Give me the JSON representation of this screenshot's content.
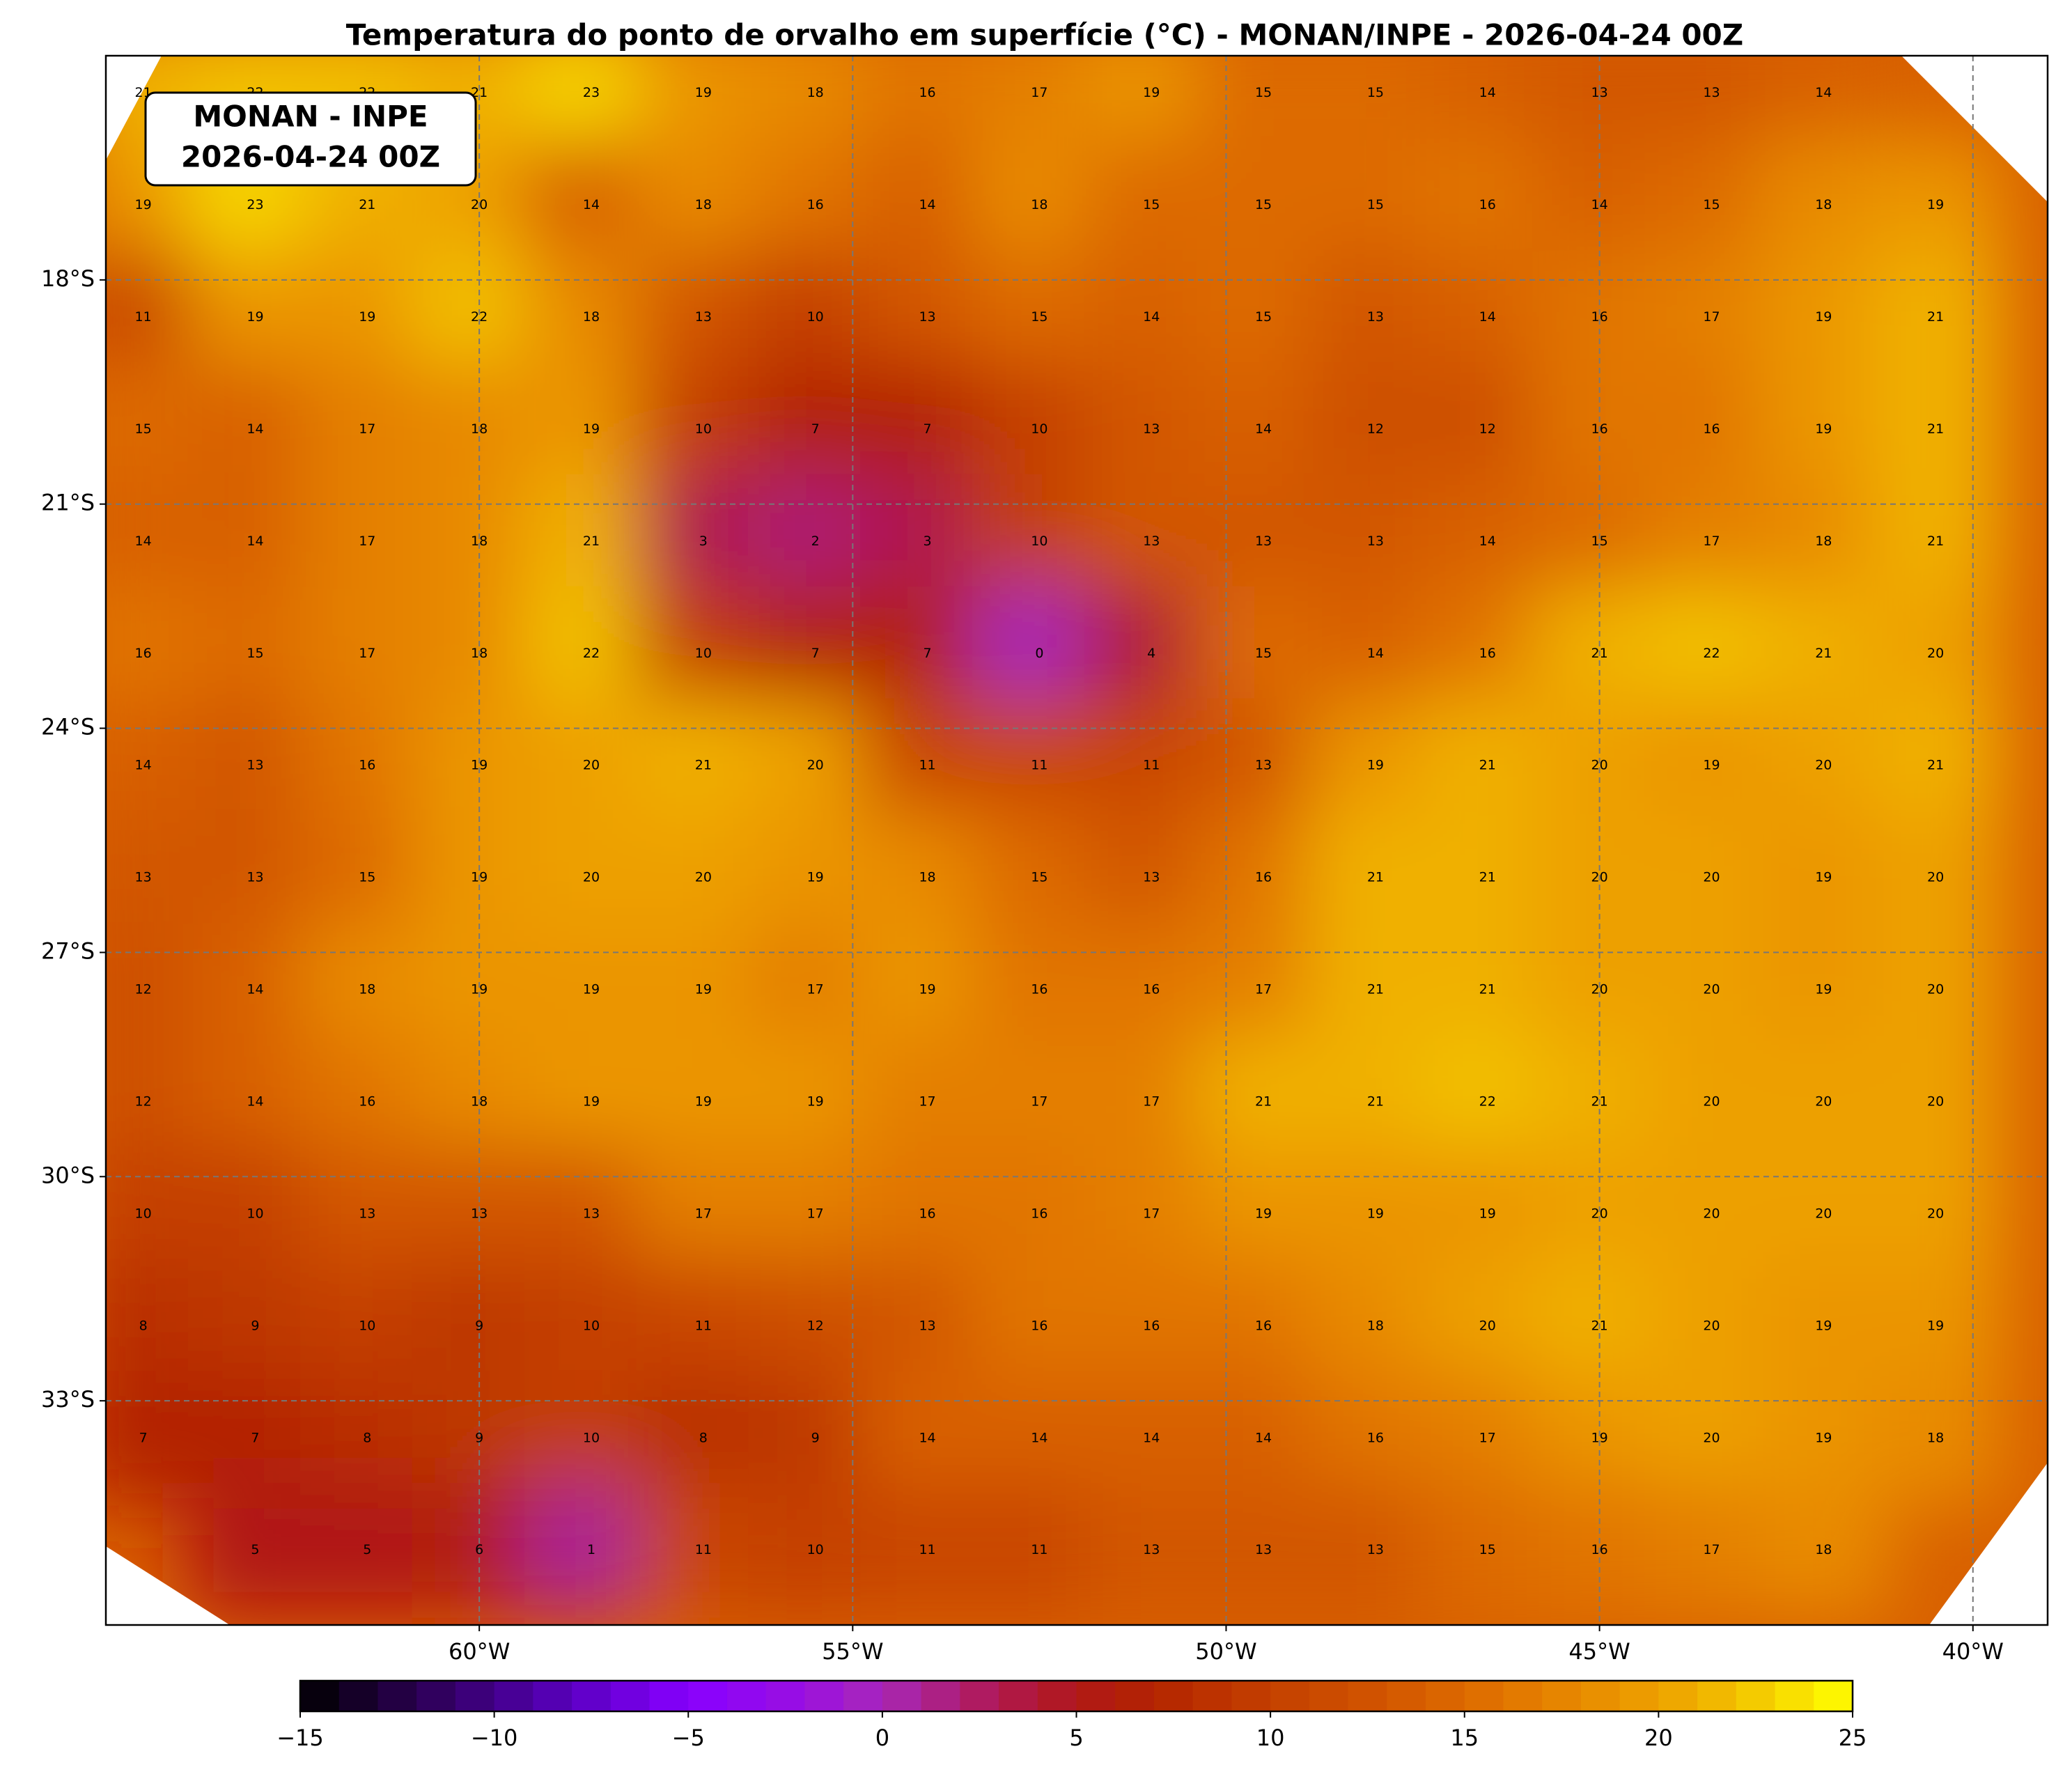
{
  "map": {
    "title": "Temperatura do ponto de orvalho em superfície (°C) - MONAN/INPE - 2026-04-24 00Z",
    "info_box": [
      "MONAN - INPE",
      "2026-04-24 00Z"
    ],
    "xlim": [
      -65,
      -39
    ],
    "ylim": [
      -36,
      -15
    ],
    "xticks": [
      {
        "value": -60,
        "label": "60°W"
      },
      {
        "value": -55,
        "label": "55°W"
      },
      {
        "value": -50,
        "label": "50°W"
      },
      {
        "value": -45,
        "label": "45°W"
      },
      {
        "value": -40,
        "label": "40°W"
      }
    ],
    "yticks": [
      {
        "value": -18,
        "label": "18°S"
      },
      {
        "value": -21,
        "label": "21°S"
      },
      {
        "value": -24,
        "label": "24°S"
      },
      {
        "value": -27,
        "label": "27°S"
      },
      {
        "value": -30,
        "label": "30°S"
      },
      {
        "value": -33,
        "label": "33°S"
      }
    ],
    "grid": true,
    "grid_lons": [
      -64.5,
      -63,
      -61.5,
      -60,
      -58.5,
      -57,
      -55.5,
      -54,
      -52.5,
      -51,
      -49.5,
      -48,
      -46.5,
      -45,
      -43.5,
      -42,
      -40.5
    ],
    "grid_lats": [
      -15.5,
      -17,
      -18.5,
      -20,
      -21.5,
      -23,
      -24.5,
      -26,
      -27.5,
      -29,
      -30.5,
      -32,
      -33.5,
      -35
    ],
    "values": [
      [
        21,
        22,
        22,
        21,
        23,
        19,
        18,
        16,
        17,
        19,
        15,
        15,
        14,
        13,
        13,
        14,
        null
      ],
      [
        19,
        23,
        21,
        20,
        14,
        18,
        16,
        14,
        18,
        15,
        15,
        15,
        16,
        14,
        15,
        18,
        19
      ],
      [
        11,
        19,
        19,
        22,
        18,
        13,
        10,
        13,
        15,
        14,
        15,
        13,
        14,
        16,
        17,
        19,
        21
      ],
      [
        15,
        14,
        17,
        18,
        19,
        10,
        7,
        7,
        10,
        13,
        14,
        12,
        12,
        16,
        16,
        19,
        21
      ],
      [
        14,
        14,
        17,
        18,
        21,
        3,
        2,
        3,
        10,
        13,
        13,
        13,
        14,
        15,
        17,
        18,
        21
      ],
      [
        16,
        15,
        17,
        18,
        22,
        10,
        7,
        7,
        0,
        4,
        15,
        14,
        16,
        21,
        22,
        21,
        20
      ],
      [
        14,
        13,
        16,
        19,
        20,
        21,
        20,
        11,
        11,
        11,
        13,
        19,
        21,
        20,
        19,
        20,
        21
      ],
      [
        13,
        13,
        15,
        19,
        20,
        20,
        19,
        18,
        15,
        13,
        16,
        21,
        21,
        20,
        20,
        19,
        20
      ],
      [
        12,
        14,
        18,
        19,
        19,
        19,
        17,
        19,
        16,
        16,
        17,
        21,
        21,
        20,
        20,
        19,
        20
      ],
      [
        12,
        14,
        16,
        18,
        19,
        19,
        19,
        17,
        17,
        17,
        21,
        21,
        22,
        21,
        20,
        20,
        20
      ],
      [
        10,
        10,
        13,
        13,
        13,
        17,
        17,
        16,
        16,
        17,
        19,
        19,
        19,
        20,
        20,
        20,
        20
      ],
      [
        8,
        9,
        10,
        9,
        10,
        11,
        12,
        13,
        16,
        16,
        16,
        18,
        20,
        21,
        20,
        19,
        19
      ],
      [
        7,
        7,
        8,
        9,
        10,
        8,
        9,
        14,
        14,
        14,
        14,
        16,
        17,
        19,
        20,
        19,
        18
      ],
      [
        null,
        5,
        5,
        6,
        1,
        11,
        10,
        11,
        11,
        13,
        13,
        13,
        15,
        16,
        17,
        18,
        null
      ]
    ],
    "colorbar": {
      "lim": [
        -15,
        25
      ],
      "levels": 40,
      "ticks": [
        {
          "value": -15,
          "label": "−15"
        },
        {
          "value": -10,
          "label": "−10"
        },
        {
          "value": -5,
          "label": "−5"
        },
        0,
        5,
        10,
        15,
        20,
        25
      ],
      "stops": [
        {
          "value": -15,
          "color": "#000000"
        },
        {
          "value": -12,
          "color": "#2a0050"
        },
        {
          "value": -8,
          "color": "#5a00c0"
        },
        {
          "value": -5,
          "color": "#8800ff"
        },
        {
          "value": -2,
          "color": "#9a10e0"
        },
        {
          "value": 0,
          "color": "#a828b8"
        },
        {
          "value": 3,
          "color": "#b01850"
        },
        {
          "value": 5,
          "color": "#b01818"
        },
        {
          "value": 7,
          "color": "#b32400"
        },
        {
          "value": 10,
          "color": "#c44000"
        },
        {
          "value": 13,
          "color": "#d25600"
        },
        {
          "value": 15,
          "color": "#dd6a00"
        },
        {
          "value": 18,
          "color": "#e88a00"
        },
        {
          "value": 20,
          "color": "#eda000"
        },
        {
          "value": 22,
          "color": "#f2c000"
        },
        {
          "value": 25,
          "color": "#ffff00"
        }
      ]
    }
  }
}
